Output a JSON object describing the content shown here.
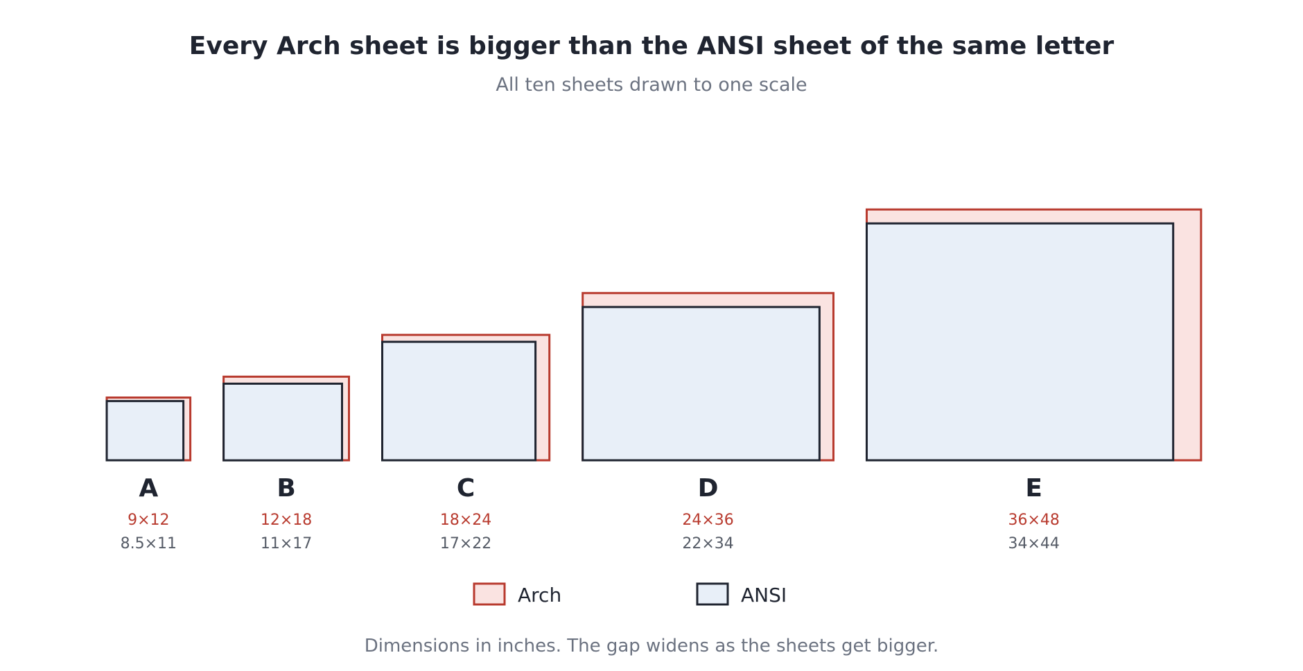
{
  "chart_data": {
    "type": "overlapping-rectangles",
    "title": "Every Arch sheet is bigger than the ANSI sheet of the same letter",
    "subtitle": "All ten sheets drawn to one scale",
    "note": "Dimensions in inches. The gap widens as the sheets get bigger.",
    "categories": [
      "A",
      "B",
      "C",
      "D",
      "E"
    ],
    "series": [
      {
        "name": "Arch",
        "color": "#b83a2e",
        "fill": "#fae3e1",
        "sheets": [
          {
            "width": 12,
            "height": 9,
            "label": "9×12"
          },
          {
            "width": 18,
            "height": 12,
            "label": "12×18"
          },
          {
            "width": 24,
            "height": 18,
            "label": "18×24"
          },
          {
            "width": 36,
            "height": 24,
            "label": "24×36"
          },
          {
            "width": 48,
            "height": 36,
            "label": "36×48"
          }
        ]
      },
      {
        "name": "ANSI",
        "color": "#1f2430",
        "fill": "#e8eff8",
        "sheets": [
          {
            "width": 11,
            "height": 8.5,
            "label": "8.5×11"
          },
          {
            "width": 17,
            "height": 11,
            "label": "11×17"
          },
          {
            "width": 22,
            "height": 17,
            "label": "17×22"
          },
          {
            "width": 34,
            "height": 22,
            "label": "22×34"
          },
          {
            "width": 44,
            "height": 34,
            "label": "34×44"
          }
        ]
      }
    ],
    "legend": [
      "Arch",
      "ANSI"
    ],
    "legend_position": "bottom-center"
  },
  "colors": {
    "title": "#1f2430",
    "subtitle": "#6b7280",
    "letter": "#1f2430",
    "arch_label": "#b83a2e",
    "ansi_label": "#555b66",
    "note": "#6b7280"
  }
}
